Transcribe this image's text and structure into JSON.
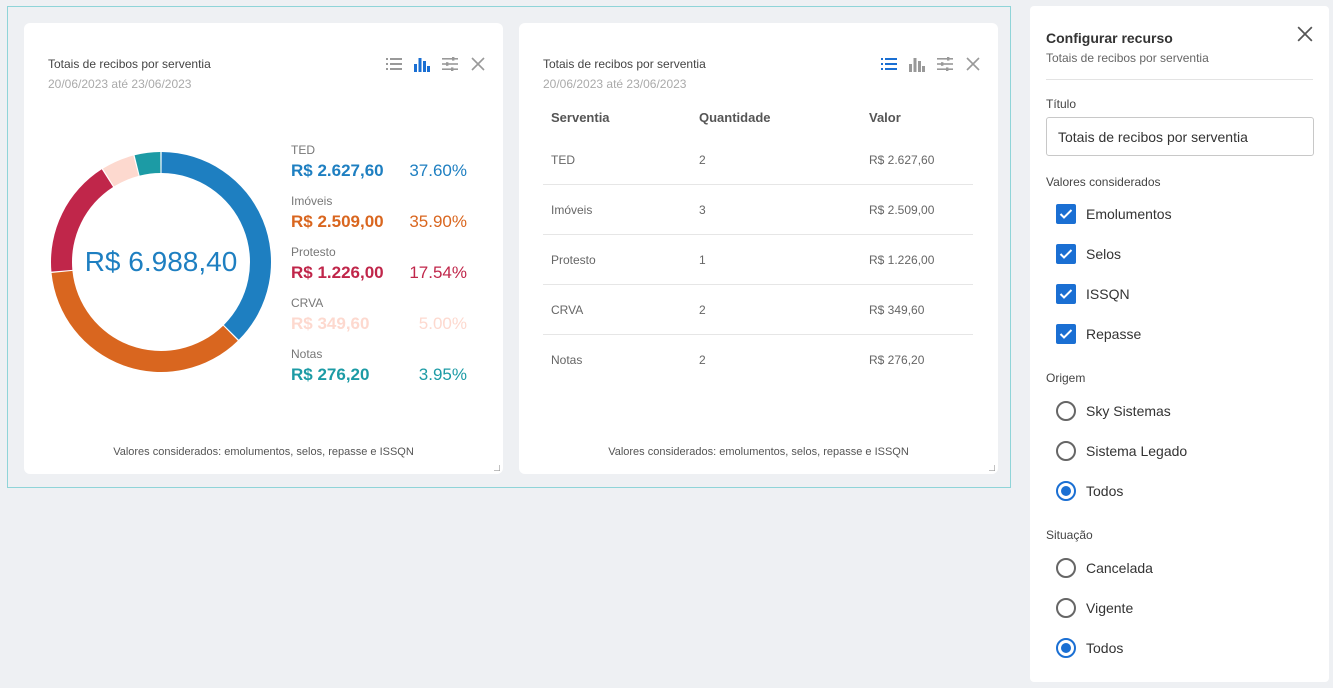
{
  "colors": {
    "ted": "#1e7fc1",
    "imoveis": "#d9661f",
    "protesto": "#c0264a",
    "crva": "#fdd9cf",
    "notas": "#1c9ba5",
    "accent": "#1a6fd3"
  },
  "card1": {
    "title": "Totais de recibos por serventia",
    "date": "20/06/2023 até 23/06/2023",
    "total": "R$ 6.988,40",
    "legend": [
      {
        "name": "TED",
        "value": "R$ 2.627,60",
        "pct": "37.60%",
        "color": "#1e7fc1"
      },
      {
        "name": "Imóveis",
        "value": "R$ 2.509,00",
        "pct": "35.90%",
        "color": "#d9661f"
      },
      {
        "name": "Protesto",
        "value": "R$ 1.226,00",
        "pct": "17.54%",
        "color": "#c0264a"
      },
      {
        "name": "CRVA",
        "value": "R$ 349,60",
        "pct": "5.00%",
        "color": "#fdd9cf"
      },
      {
        "name": "Notas",
        "value": "R$ 276,20",
        "pct": "3.95%",
        "color": "#1c9ba5"
      }
    ],
    "footer": "Valores considerados: emolumentos, selos, repasse e ISSQN"
  },
  "chart_data": {
    "type": "pie",
    "categories": [
      "TED",
      "Imóveis",
      "Protesto",
      "CRVA",
      "Notas"
    ],
    "values": [
      2627.6,
      2509.0,
      1226.0,
      349.6,
      276.2
    ],
    "percentages": [
      37.6,
      35.9,
      17.54,
      5.0,
      3.95
    ],
    "total_label": "R$ 6.988,40",
    "title": "Totais de recibos por serventia"
  },
  "card2": {
    "title": "Totais de recibos por serventia",
    "date": "20/06/2023 até 23/06/2023",
    "headers": [
      "Serventia",
      "Quantidade",
      "Valor"
    ],
    "rows": [
      [
        "TED",
        "2",
        "R$ 2.627,60"
      ],
      [
        "Imóveis",
        "3",
        "R$ 2.509,00"
      ],
      [
        "Protesto",
        "1",
        "R$ 1.226,00"
      ],
      [
        "CRVA",
        "2",
        "R$ 349,60"
      ],
      [
        "Notas",
        "2",
        "R$ 276,20"
      ]
    ],
    "footer": "Valores considerados: emolumentos, selos, repasse e ISSQN"
  },
  "panel": {
    "title": "Configurar recurso",
    "subtitle": "Totais de recibos por serventia",
    "titulo_label": "Título",
    "titulo_value": "Totais de recibos por serventia",
    "valores_label": "Valores considerados",
    "valores": [
      {
        "label": "Emolumentos",
        "checked": true
      },
      {
        "label": "Selos",
        "checked": true
      },
      {
        "label": "ISSQN",
        "checked": true
      },
      {
        "label": "Repasse",
        "checked": true
      }
    ],
    "origem_label": "Origem",
    "origem": [
      {
        "label": "Sky Sistemas",
        "selected": false
      },
      {
        "label": "Sistema Legado",
        "selected": false
      },
      {
        "label": "Todos",
        "selected": true
      }
    ],
    "situacao_label": "Situação",
    "situacao": [
      {
        "label": "Cancelada",
        "selected": false
      },
      {
        "label": "Vigente",
        "selected": false
      },
      {
        "label": "Todos",
        "selected": true
      }
    ]
  }
}
